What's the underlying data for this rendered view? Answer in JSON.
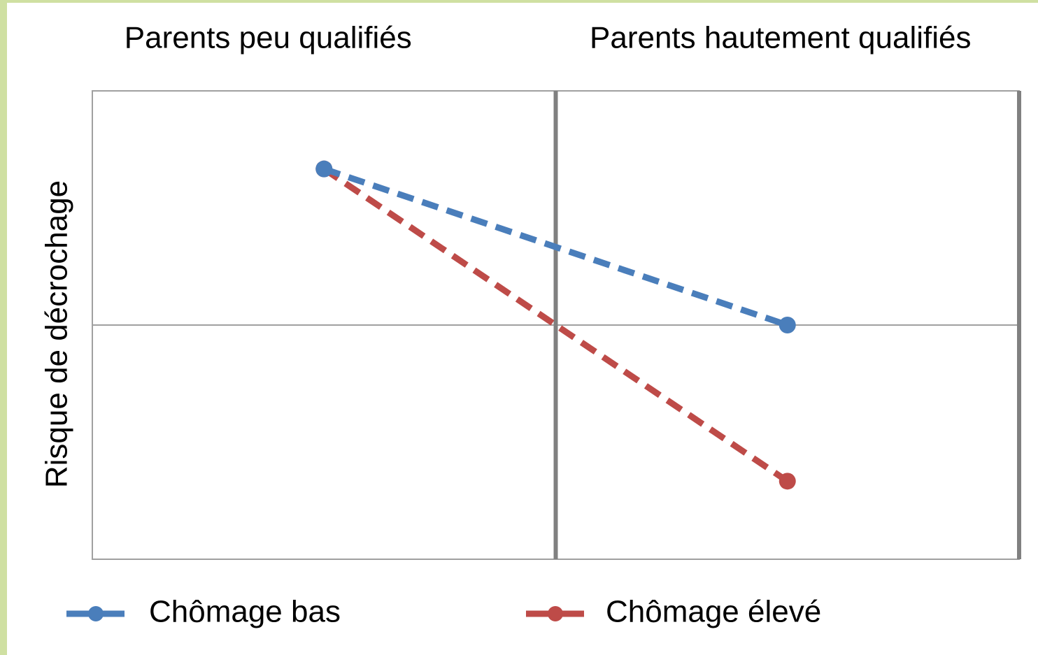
{
  "chart_data": {
    "type": "line",
    "categories": [
      "Parents peu qualifiés",
      "Parents hautement qualifiés"
    ],
    "y_label": "Risque de décrochage",
    "series": [
      {
        "name": "Chômage bas",
        "color": "#4a7ebb",
        "values": [
          5,
          3
        ]
      },
      {
        "name": "Chômage élevé",
        "color": "#be4b48",
        "values": [
          5,
          1
        ]
      }
    ],
    "ylim": [
      0,
      6
    ],
    "yticks": [
      3
    ],
    "grid": true,
    "legend": "bottom"
  }
}
